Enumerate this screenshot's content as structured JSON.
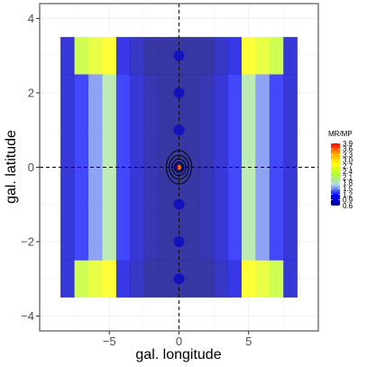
{
  "chart_data": {
    "type": "heatmap",
    "xlabel": "gal. longitude",
    "ylabel": "gal. latitude",
    "xlim": [
      -10,
      10
    ],
    "ylim": [
      -4.4,
      4.4
    ],
    "x_ticks": [
      -5,
      0,
      5
    ],
    "x_tick_labels": [
      "−5",
      "0",
      "5"
    ],
    "y_ticks": [
      -4,
      -2,
      0,
      2,
      4
    ],
    "y_tick_labels": [
      "−4",
      "−2",
      "0",
      "2",
      "4"
    ],
    "grid": true,
    "legend": {
      "title": "MR/MP",
      "placement": "right",
      "min": 0.6,
      "max": 3.9,
      "labels": [
        "3.9",
        "3.6",
        "3.3",
        "3.0",
        "2.7",
        "2.4",
        "2.1",
        "1.8",
        "1.5",
        "1.2",
        "0.9",
        "0.6"
      ],
      "colors": [
        "#00008B",
        "#0000FF",
        "#ADD8E6",
        "#ADFF2F",
        "#FFFF00",
        "#FFA500",
        "#FF0000"
      ]
    },
    "x_bins": [
      -8.5,
      -7.5,
      -6.5,
      -5.5,
      -4.5,
      -3.5,
      -2.5,
      -1.5,
      -0.5,
      0.5,
      1.5,
      2.5,
      3.5,
      4.5,
      5.5,
      6.5,
      7.5,
      8.5
    ],
    "y_bins": [
      -3.5,
      -2.5,
      2.5,
      3.5
    ],
    "values": [
      [
        0.9,
        2.4,
        2.6,
        2.8,
        1.0,
        0.8,
        0.6,
        0.5,
        0.5,
        0.5,
        0.6,
        0.8,
        1.0,
        2.8,
        2.6,
        2.4,
        0.9
      ],
      [
        0.9,
        1.2,
        1.5,
        1.9,
        1.2,
        0.9,
        0.7,
        0.6,
        0.6,
        0.6,
        0.7,
        0.9,
        1.2,
        1.9,
        1.5,
        1.2,
        0.9
      ],
      [
        0.9,
        2.4,
        2.6,
        2.8,
        1.0,
        0.8,
        0.6,
        0.5,
        0.5,
        0.5,
        0.6,
        0.8,
        1.0,
        2.8,
        2.6,
        2.4,
        0.9
      ]
    ],
    "markers": {
      "x": [
        0,
        0,
        0,
        0,
        0,
        0,
        0
      ],
      "y": [
        -3,
        -2,
        -1,
        0,
        1,
        2,
        3
      ],
      "color": "#1010c0"
    },
    "contour_center": [
      0,
      0
    ],
    "contours": [
      {
        "rx": 0.9,
        "ry": 0.45
      },
      {
        "rx": 0.7,
        "ry": 0.32
      },
      {
        "rx": 0.5,
        "ry": 0.22
      },
      {
        "rx": 0.32,
        "ry": 0.14
      },
      {
        "rx": 0.18,
        "ry": 0.08
      }
    ],
    "reference_lines": {
      "x": 0,
      "y": 0
    }
  }
}
